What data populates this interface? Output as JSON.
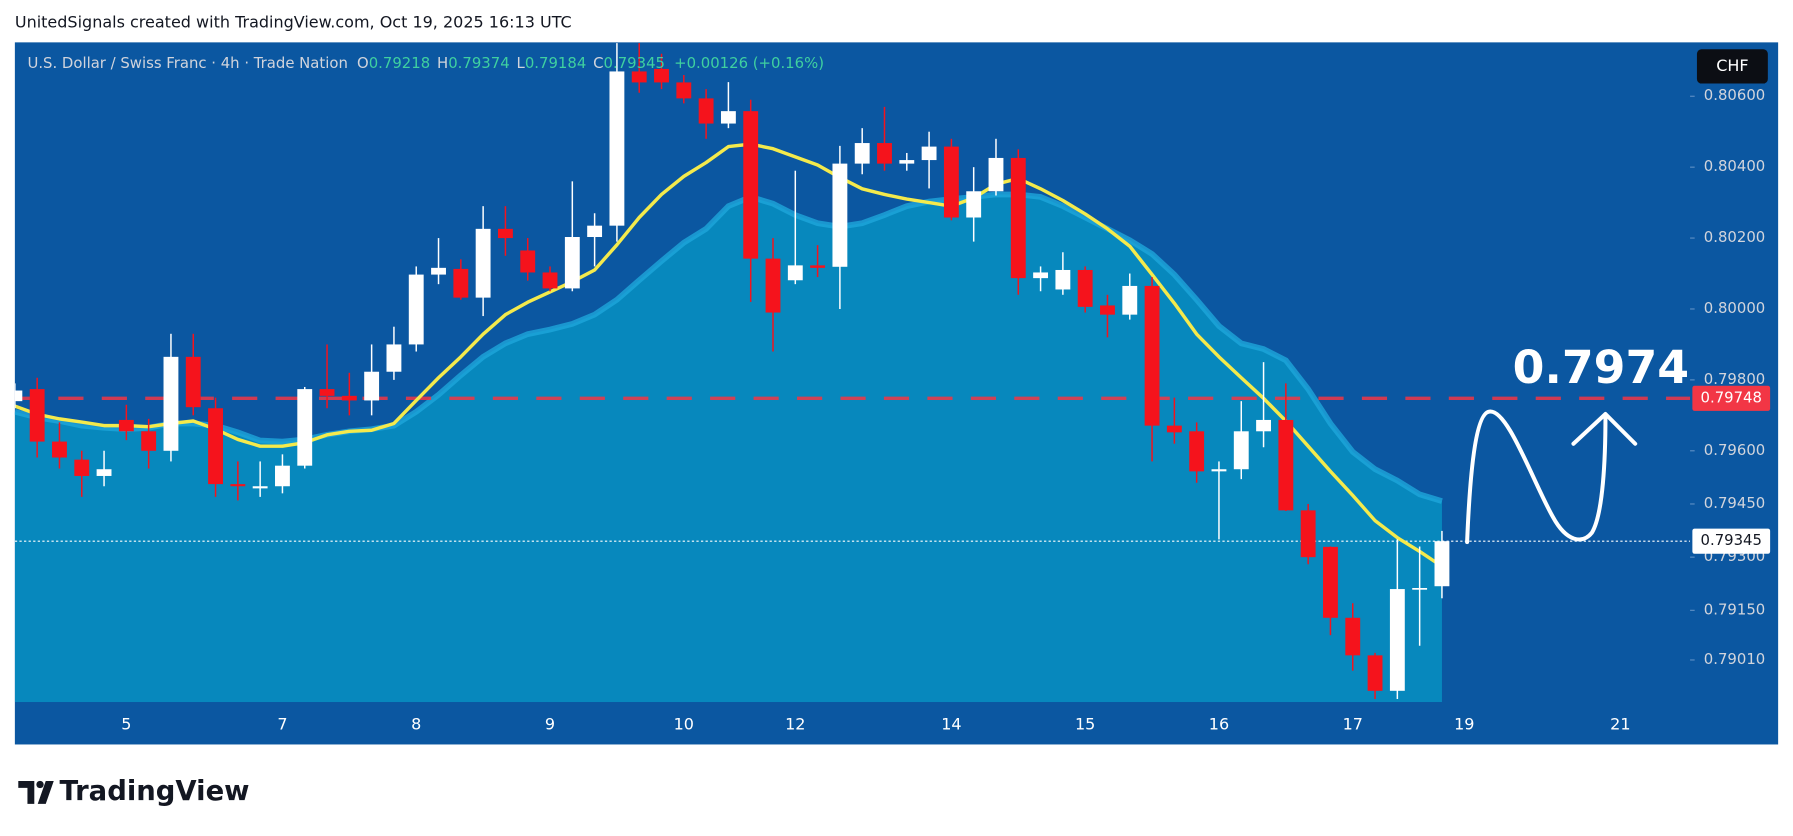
{
  "header": "UnitedSignals created with TradingView.com, Oct 19, 2025 16:13 UTC",
  "chart_data": {
    "type": "candlestick",
    "symbol": "U.S. Dollar / Swiss Franc · 4h · Trade Nation",
    "ohlc_letters": [
      "O",
      "H",
      "L",
      "C"
    ],
    "change": "+0.00126 (+0.16%)",
    "currency": "CHF",
    "annotation": "0.7974",
    "up_color": "#ffffff",
    "down_color": "#f5131c",
    "categories": [
      null,
      null,
      null,
      null,
      null,
      "5",
      null,
      null,
      null,
      null,
      null,
      null,
      "7",
      null,
      null,
      null,
      null,
      null,
      "8",
      null,
      null,
      null,
      null,
      null,
      "9",
      null,
      null,
      null,
      null,
      null,
      "10",
      null,
      null,
      null,
      null,
      "12",
      null,
      null,
      null,
      null,
      null,
      null,
      "14",
      null,
      null,
      null,
      null,
      null,
      "15",
      null,
      null,
      null,
      null,
      null,
      "16",
      null,
      null,
      null,
      null,
      null,
      "17",
      null,
      null,
      null,
      null,
      "19",
      null,
      null,
      null,
      null,
      null,
      null,
      "21",
      null,
      null,
      null
    ],
    "open": [
      0.7974,
      0.79774,
      0.79626,
      0.79575,
      0.79529,
      0.79687,
      0.79655,
      0.796,
      0.79865,
      0.7972,
      0.79506,
      0.79494,
      0.795,
      0.79558,
      0.79774,
      0.79755,
      0.79742,
      0.79823,
      0.799,
      0.80097,
      0.80113,
      0.80032,
      0.80226,
      0.80165,
      0.80103,
      0.80058,
      0.80203,
      0.80235,
      0.8067,
      0.80677,
      0.80639,
      0.80594,
      0.80523,
      0.80558,
      0.80142,
      0.80081,
      0.80123,
      0.80119,
      0.8041,
      0.80468,
      0.8041,
      0.8042,
      0.80458,
      0.80258,
      0.80332,
      0.80426,
      0.80087,
      0.80055,
      0.8011,
      0.8001,
      0.79984,
      0.80065,
      0.79671,
      0.79655,
      0.79542,
      0.79548,
      0.79655,
      0.79687,
      0.79432,
      0.79329,
      0.79129,
      0.79023,
      0.78923,
      0.7921,
      0.79218,
      null,
      null,
      null,
      null,
      null,
      null,
      null,
      null,
      null,
      null,
      null
    ],
    "high": [
      0.7979,
      0.79806,
      0.7968,
      0.796,
      0.796,
      0.7973,
      0.7969,
      0.7993,
      0.7993,
      0.7975,
      0.7957,
      0.7957,
      0.7959,
      0.7978,
      0.799,
      0.7982,
      0.799,
      0.7995,
      0.8012,
      0.802,
      0.8014,
      0.8029,
      0.8029,
      0.802,
      0.8012,
      0.8036,
      0.8027,
      0.8075,
      0.8075,
      0.8072,
      0.8066,
      0.8062,
      0.8064,
      0.8059,
      0.802,
      0.8039,
      0.8018,
      0.8046,
      0.8051,
      0.8057,
      0.8044,
      0.805,
      0.8048,
      0.804,
      0.8048,
      0.8045,
      0.8012,
      0.8016,
      0.8012,
      0.8004,
      0.801,
      0.8009,
      0.7975,
      0.7968,
      0.7957,
      0.7974,
      0.7985,
      0.7979,
      0.7945,
      0.7933,
      0.7917,
      0.7903,
      0.7935,
      0.7933,
      0.79374,
      null,
      null,
      null,
      null,
      null,
      null,
      null,
      null,
      null,
      null,
      null
    ],
    "low": [
      0.7972,
      0.79581,
      0.7955,
      0.7947,
      0.795,
      0.7963,
      0.7955,
      0.7957,
      0.797,
      0.7947,
      0.7946,
      0.7947,
      0.7948,
      0.7955,
      0.7972,
      0.797,
      0.797,
      0.798,
      0.7988,
      0.8007,
      0.80026,
      0.7998,
      0.8015,
      0.8008,
      0.8005,
      0.8005,
      0.8012,
      0.8019,
      0.8061,
      0.8062,
      0.8058,
      0.8048,
      0.8051,
      0.8002,
      0.7988,
      0.8007,
      0.8009,
      0.8,
      0.8038,
      0.8039,
      0.8039,
      0.8034,
      0.8025,
      0.8019,
      0.8032,
      0.8004,
      0.8005,
      0.8004,
      0.7999,
      0.7992,
      0.7997,
      0.7957,
      0.7962,
      0.7951,
      0.7935,
      0.7952,
      0.7961,
      0.7943,
      0.7928,
      0.7908,
      0.7898,
      0.789,
      0.789,
      0.7905,
      0.79184,
      null,
      null,
      null,
      null,
      null,
      null,
      null,
      null,
      null,
      null,
      null
    ],
    "close": [
      0.7977,
      0.79626,
      0.79581,
      0.79529,
      0.79548,
      0.79655,
      0.796,
      0.79865,
      0.79723,
      0.79506,
      0.795,
      0.795,
      0.79558,
      0.79774,
      0.79755,
      0.79742,
      0.79823,
      0.799,
      0.80097,
      0.80116,
      0.80032,
      0.80226,
      0.802,
      0.80103,
      0.80058,
      0.80203,
      0.80235,
      0.8067,
      0.80639,
      0.80639,
      0.80594,
      0.80523,
      0.80558,
      0.80142,
      0.7999,
      0.80123,
      0.80116,
      0.8041,
      0.80468,
      0.8041,
      0.8042,
      0.80458,
      0.80258,
      0.80332,
      0.80426,
      0.80087,
      0.80103,
      0.8011,
      0.80006,
      0.79984,
      0.80065,
      0.79671,
      0.79652,
      0.79542,
      0.79548,
      0.79655,
      0.79687,
      0.79432,
      0.793,
      0.79129,
      0.79023,
      0.78923,
      0.7921,
      0.79213,
      0.79345,
      null,
      null,
      null,
      null,
      null,
      null,
      null,
      null,
      null,
      null,
      null
    ],
    "ma": {
      "color": "#f4ea4c",
      "values": [
        0.79726,
        0.79703,
        0.7969,
        0.79681,
        0.79671,
        0.79671,
        0.79668,
        0.79677,
        0.79684,
        0.79661,
        0.79632,
        0.79613,
        0.79613,
        0.79623,
        0.79645,
        0.79655,
        0.79658,
        0.79677,
        0.79742,
        0.79806,
        0.79865,
        0.79929,
        0.79984,
        0.80019,
        0.80048,
        0.80077,
        0.8011,
        0.80181,
        0.80258,
        0.80323,
        0.80374,
        0.80413,
        0.80458,
        0.80465,
        0.80452,
        0.80429,
        0.80406,
        0.80371,
        0.80339,
        0.80323,
        0.8031,
        0.803,
        0.8029,
        0.80313,
        0.80352,
        0.80368,
        0.80339,
        0.80306,
        0.80268,
        0.80226,
        0.80177,
        0.80097,
        0.80016,
        0.79929,
        0.79865,
        0.79806,
        0.79748,
        0.79684,
        0.79613,
        0.79542,
        0.79474,
        0.79403,
        0.79355,
        0.79316,
        0.79274,
        null,
        null,
        null,
        null,
        null,
        null,
        null,
        null,
        null,
        null,
        null
      ]
    },
    "band": {
      "color": "#0788bd",
      "values": [
        0.7971,
        0.79694,
        0.79684,
        0.79671,
        0.79665,
        0.79661,
        0.79665,
        0.79677,
        0.79677,
        0.79671,
        0.79652,
        0.79629,
        0.79626,
        0.79632,
        0.79645,
        0.79655,
        0.79661,
        0.79671,
        0.7971,
        0.79758,
        0.79813,
        0.79865,
        0.79903,
        0.79929,
        0.79942,
        0.79958,
        0.79984,
        0.80026,
        0.80081,
        0.80135,
        0.80187,
        0.80226,
        0.8029,
        0.80316,
        0.80297,
        0.80265,
        0.80242,
        0.80232,
        0.80242,
        0.80265,
        0.8029,
        0.80303,
        0.8031,
        0.80316,
        0.80323,
        0.80323,
        0.80316,
        0.8029,
        0.80258,
        0.80226,
        0.80194,
        0.80155,
        0.80097,
        0.80026,
        0.79952,
        0.79903,
        0.79887,
        0.79855,
        0.79774,
        0.79677,
        0.79597,
        0.79548,
        0.79516,
        0.79477,
        0.79458,
        null,
        null,
        null,
        null,
        null,
        null,
        null,
        null,
        null,
        null,
        null
      ]
    },
    "level": {
      "value": 0.79748,
      "color": "#f23645"
    },
    "ylim": [
      0.78891,
      0.80752
    ],
    "yticks": [
      {
        "value": 0.806,
        "label": "0.80600"
      },
      {
        "value": 0.804,
        "label": "0.80400"
      },
      {
        "value": 0.802,
        "label": "0.80200"
      },
      {
        "value": 0.8,
        "label": "0.80000"
      },
      {
        "value": 0.798,
        "label": "0.79800"
      },
      {
        "value": 0.796,
        "label": "0.79600"
      },
      {
        "value": 0.7945,
        "label": "0.79450"
      },
      {
        "value": 0.793,
        "label": "0.79300"
      },
      {
        "value": 0.7915,
        "label": "0.79150"
      },
      {
        "value": 0.7901,
        "label": "0.79010"
      }
    ]
  },
  "footer": {
    "logo": "TradingView"
  }
}
